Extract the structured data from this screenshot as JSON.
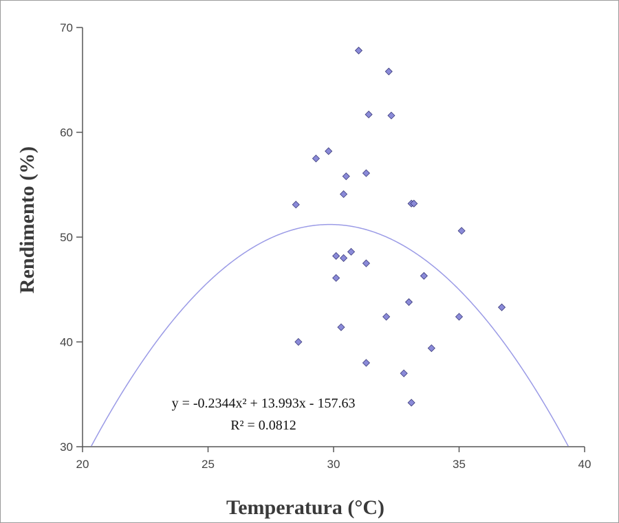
{
  "chart_data": {
    "type": "scatter",
    "xlabel": "Temperatura (°C)",
    "ylabel": "Rendimento (%)",
    "xlim": [
      20,
      40
    ],
    "ylim": [
      30,
      70
    ],
    "x_ticks": [
      20,
      25,
      30,
      35,
      40
    ],
    "y_ticks": [
      30,
      40,
      50,
      60,
      70
    ],
    "grid": false,
    "legend": "none",
    "point_color": "#8a8ad8",
    "point_outline": "#3a3a7a",
    "trendline_color": "#9a9ae6",
    "points": [
      {
        "x": 28.5,
        "y": 53.1
      },
      {
        "x": 28.6,
        "y": 40.0
      },
      {
        "x": 29.3,
        "y": 57.5
      },
      {
        "x": 29.8,
        "y": 58.2
      },
      {
        "x": 30.1,
        "y": 48.2
      },
      {
        "x": 30.1,
        "y": 46.1
      },
      {
        "x": 30.3,
        "y": 41.4
      },
      {
        "x": 30.4,
        "y": 54.1
      },
      {
        "x": 30.4,
        "y": 48.0
      },
      {
        "x": 30.5,
        "y": 55.8
      },
      {
        "x": 30.7,
        "y": 48.6
      },
      {
        "x": 31.0,
        "y": 67.8
      },
      {
        "x": 31.3,
        "y": 56.1
      },
      {
        "x": 31.3,
        "y": 47.5
      },
      {
        "x": 31.3,
        "y": 38.0
      },
      {
        "x": 31.4,
        "y": 61.7
      },
      {
        "x": 32.1,
        "y": 42.4
      },
      {
        "x": 32.2,
        "y": 65.8
      },
      {
        "x": 32.3,
        "y": 61.6
      },
      {
        "x": 32.8,
        "y": 37.0
      },
      {
        "x": 33.0,
        "y": 43.8
      },
      {
        "x": 33.1,
        "y": 53.2
      },
      {
        "x": 33.1,
        "y": 34.2
      },
      {
        "x": 33.2,
        "y": 53.2
      },
      {
        "x": 33.6,
        "y": 46.3
      },
      {
        "x": 33.9,
        "y": 39.4
      },
      {
        "x": 35.0,
        "y": 42.4
      },
      {
        "x": 35.1,
        "y": 50.6
      },
      {
        "x": 36.7,
        "y": 43.3
      }
    ],
    "trendline": {
      "type": "polynomial",
      "a": -0.2344,
      "b": 13.993,
      "c": -157.63,
      "equation": "y = -0.2344x² + 13.993x - 157.63",
      "r2": "R² = 0.0812"
    }
  }
}
